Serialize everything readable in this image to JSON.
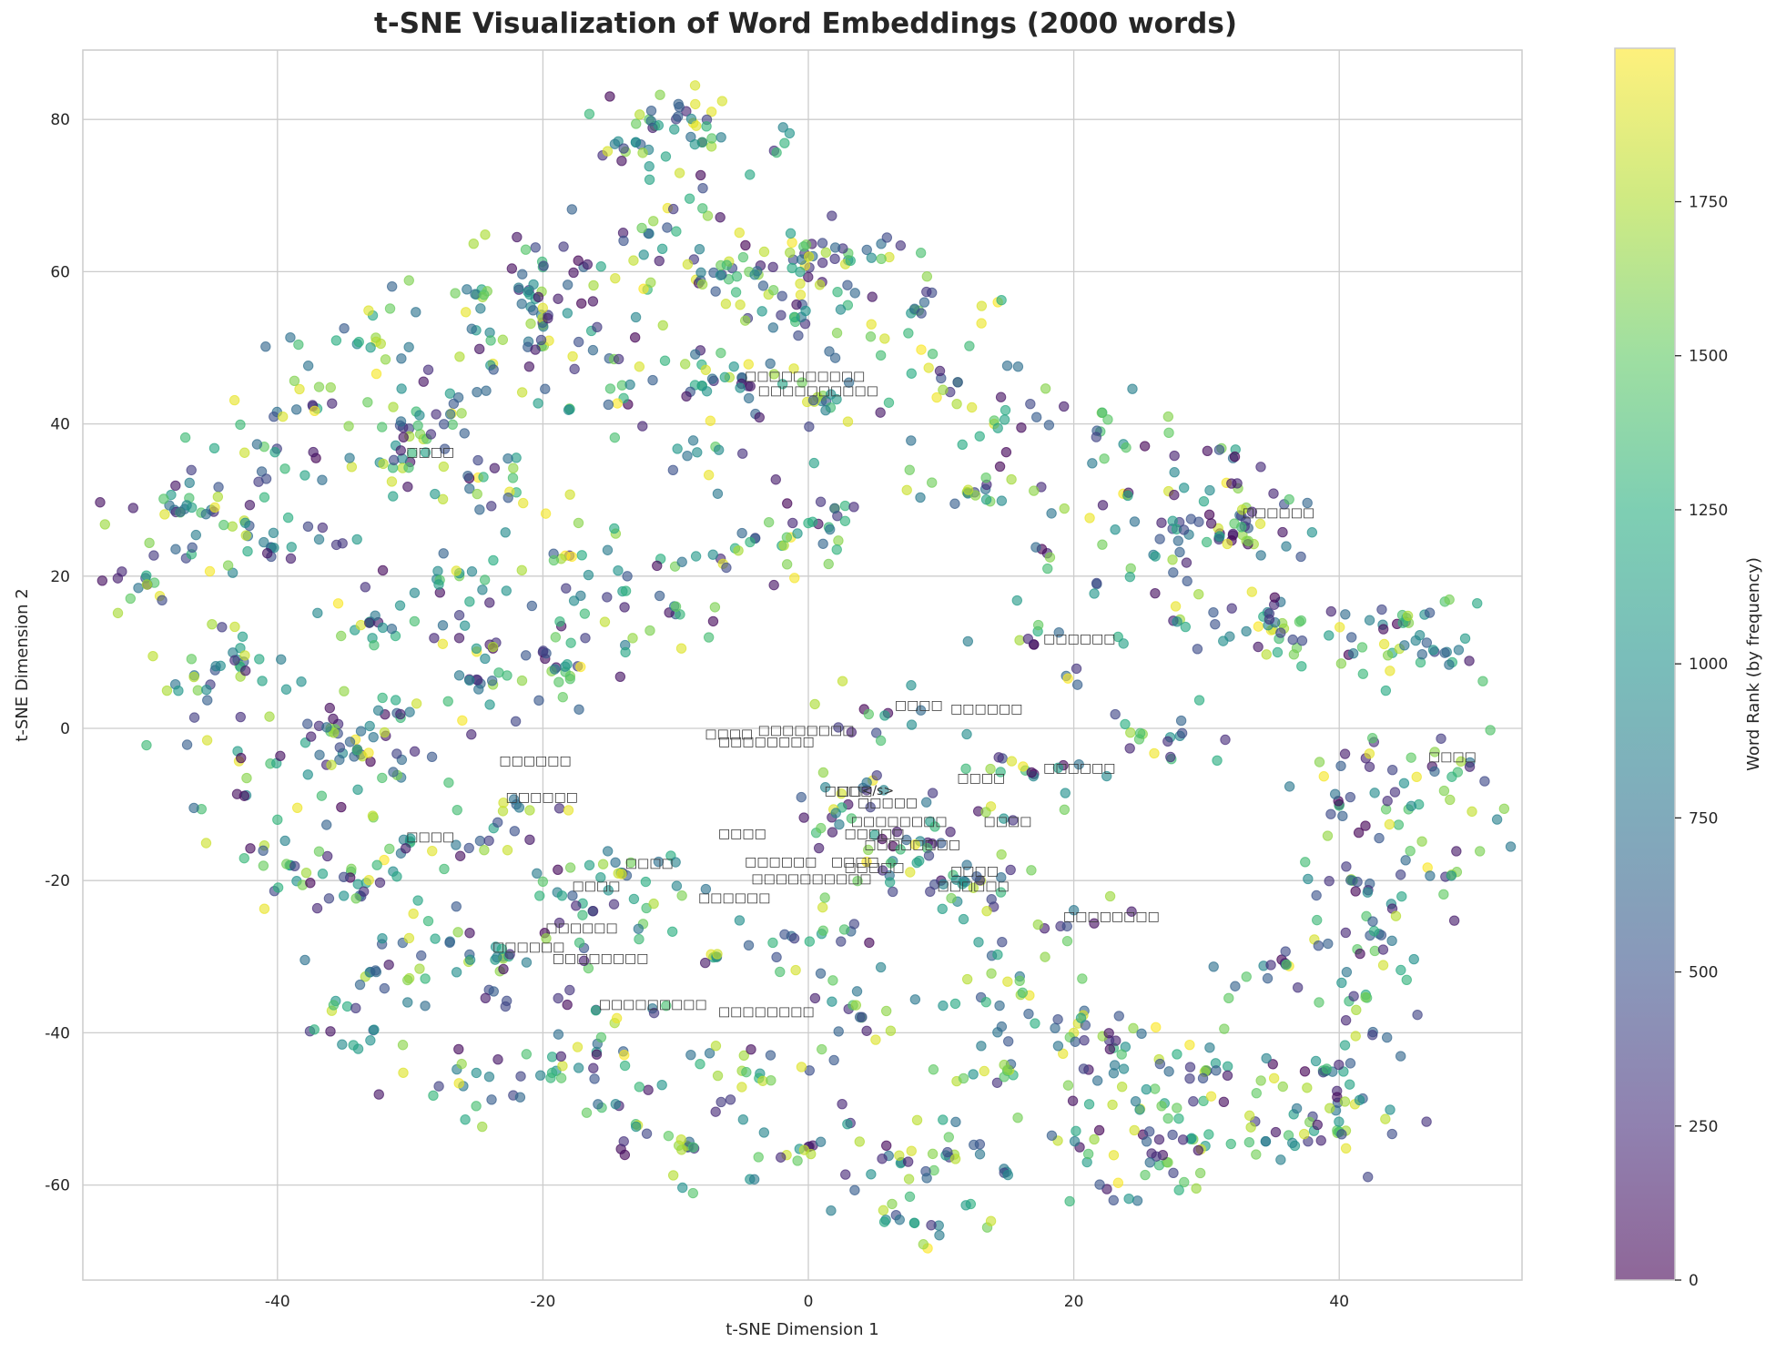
{
  "chart_data": {
    "type": "scatter",
    "title": "t-SNE Visualization of Word Embeddings (2000 words)",
    "xlabel": "t-SNE Dimension 1",
    "ylabel": "t-SNE Dimension 2",
    "xlim": [
      -55,
      53
    ],
    "ylim": [
      -72,
      89
    ],
    "xticks": [
      -40,
      -20,
      0,
      20,
      40
    ],
    "yticks": [
      -60,
      -40,
      -20,
      0,
      20,
      40,
      60,
      80
    ],
    "grid": true,
    "colorbar": {
      "label": "Word Rank (by frequency)",
      "colormap": "viridis",
      "alpha": 0.6,
      "range": [
        0,
        1999
      ],
      "ticks": [
        0,
        250,
        500,
        750,
        1000,
        1250,
        1500,
        1750
      ]
    },
    "n_points": 2000,
    "point_label_text": "□ (missing-glyph boxes)",
    "sample_points": [
      [
        -49.8,
        18.9,
        20
      ],
      [
        -47,
        28.8,
        700
      ],
      [
        -46,
        5,
        1600
      ],
      [
        -45,
        28.7,
        800
      ],
      [
        -43,
        9,
        1050
      ],
      [
        -43,
        -3,
        1100
      ],
      [
        -41,
        37,
        1500
      ],
      [
        -40.5,
        23.8,
        600
      ],
      [
        -40,
        -12,
        1300
      ],
      [
        -39,
        -18,
        900
      ],
      [
        -37,
        42,
        1200
      ],
      [
        -36,
        0,
        1700
      ],
      [
        -35,
        -22,
        1000
      ],
      [
        -34,
        50.5,
        900
      ],
      [
        -34,
        -3,
        1000
      ],
      [
        -33,
        14,
        700
      ],
      [
        -33,
        -32,
        400
      ],
      [
        -33,
        -41,
        1000
      ],
      [
        -31,
        2,
        600
      ],
      [
        -30,
        35,
        100
      ],
      [
        -30,
        -15,
        1200
      ],
      [
        -29,
        38,
        1800
      ],
      [
        -28,
        19.6,
        900
      ],
      [
        -27,
        44,
        1100
      ],
      [
        -27,
        -28,
        800
      ],
      [
        -26,
        -47,
        800
      ],
      [
        -25,
        57,
        1400
      ],
      [
        -25,
        6.4,
        300
      ],
      [
        -24,
        52,
        900
      ],
      [
        -24,
        11,
        150
      ],
      [
        -23,
        -30,
        700
      ],
      [
        -22,
        -10,
        600
      ],
      [
        -22,
        31,
        1300
      ],
      [
        -21,
        57,
        1100
      ],
      [
        -20,
        60.6,
        1300
      ],
      [
        -20,
        53,
        1800
      ],
      [
        -20,
        10,
        200
      ],
      [
        -19,
        8,
        100
      ],
      [
        -19,
        -45,
        1000
      ],
      [
        -18,
        42,
        1600
      ],
      [
        -18,
        22.7,
        250
      ],
      [
        -17,
        -23,
        1200
      ],
      [
        -16,
        -37,
        300
      ],
      [
        -15,
        48.6,
        600
      ],
      [
        -14,
        18,
        1100
      ],
      [
        -14,
        -19,
        200
      ],
      [
        -13,
        -52,
        1400
      ],
      [
        -13,
        77,
        1000
      ],
      [
        -12,
        80,
        1500
      ],
      [
        -12,
        65,
        900
      ],
      [
        -11,
        63,
        1100
      ],
      [
        -10,
        15,
        600
      ],
      [
        -9,
        -55,
        1300
      ],
      [
        -8,
        45,
        1400
      ],
      [
        -8,
        77,
        50
      ],
      [
        -7,
        37,
        1500
      ],
      [
        -7,
        -30,
        1200
      ],
      [
        -6,
        59,
        1400
      ],
      [
        -5,
        46,
        700
      ],
      [
        -5,
        -45,
        1700
      ],
      [
        -4,
        25,
        300
      ],
      [
        -3,
        57,
        1800
      ],
      [
        -2,
        24,
        1200
      ],
      [
        -1,
        54,
        1700
      ],
      [
        0,
        62,
        1700
      ],
      [
        0,
        -55,
        100
      ],
      [
        1,
        43,
        900
      ],
      [
        1,
        -27,
        1100
      ],
      [
        2,
        28.9,
        1600
      ],
      [
        3,
        61.5,
        900
      ],
      [
        3,
        -10,
        100
      ],
      [
        4,
        -38,
        1500
      ],
      [
        5,
        -14,
        1100
      ],
      [
        6,
        2,
        50
      ],
      [
        7,
        -57,
        600
      ],
      [
        8,
        55,
        1500
      ],
      [
        8,
        -65,
        1300
      ],
      [
        9,
        -15,
        150
      ],
      [
        10,
        -20,
        100
      ],
      [
        10,
        46,
        500
      ],
      [
        11,
        -56,
        1700
      ],
      [
        12,
        31,
        1000
      ],
      [
        13,
        -20,
        1800
      ],
      [
        14,
        40,
        1900
      ],
      [
        15,
        -45,
        1200
      ],
      [
        16,
        -35,
        1700
      ],
      [
        17,
        11,
        300
      ],
      [
        17,
        -6,
        100
      ],
      [
        18,
        23,
        200
      ],
      [
        19,
        -26,
        300
      ],
      [
        20,
        -40,
        1900
      ],
      [
        21,
        -57,
        1100
      ],
      [
        22,
        39,
        1400
      ],
      [
        23,
        -42,
        1300
      ],
      [
        24,
        30.7,
        1950
      ],
      [
        25,
        -50,
        1900
      ],
      [
        26,
        22.8,
        800
      ],
      [
        27,
        -57,
        1500
      ],
      [
        28,
        -1,
        900
      ],
      [
        28,
        14.3,
        1700
      ],
      [
        29,
        -54,
        1600
      ],
      [
        30,
        -45,
        1200
      ],
      [
        31,
        25.6,
        100
      ],
      [
        32,
        35.5,
        700
      ],
      [
        32.5,
        28,
        700
      ],
      [
        33,
        24.6,
        1700
      ],
      [
        35,
        13,
        1600
      ],
      [
        36,
        -31,
        1300
      ],
      [
        37,
        14,
        1500
      ],
      [
        38,
        -51,
        400
      ],
      [
        39,
        -45,
        500
      ],
      [
        40,
        -10,
        100
      ],
      [
        40,
        -53,
        1600
      ],
      [
        41,
        -20,
        1900
      ],
      [
        42,
        -35,
        1200
      ],
      [
        43,
        -27,
        900
      ],
      [
        44,
        9.9,
        1200
      ],
      [
        45,
        14,
        300
      ],
      [
        46,
        -10,
        1200
      ],
      [
        47,
        -5,
        100
      ],
      [
        48,
        -19.5,
        300
      ],
      [
        49,
        10.3,
        800
      ]
    ],
    "annotations": [
      {
        "x": -5,
        "y": 45.5,
        "text": "□□□□□□□□□□"
      },
      {
        "x": -4,
        "y": 43.6,
        "text": "□□□□□□□□□□"
      },
      {
        "x": -30.5,
        "y": 35.5,
        "text": "□□□□"
      },
      {
        "x": 32.5,
        "y": 27.6,
        "text": "□□□□□□"
      },
      {
        "x": 17.5,
        "y": 11,
        "text": "□□□□□□"
      },
      {
        "x": 6.3,
        "y": 2.3,
        "text": "□□□□"
      },
      {
        "x": 10.5,
        "y": 1.8,
        "text": "□□□□□□"
      },
      {
        "x": -8,
        "y": -1.5,
        "text": "□□□□"
      },
      {
        "x": -7,
        "y": -2.5,
        "text": "□□□□□□□□"
      },
      {
        "x": -4,
        "y": -1,
        "text": "□□□□□□□□"
      },
      {
        "x": -23.5,
        "y": -5,
        "text": "□□□□□□"
      },
      {
        "x": 17.5,
        "y": -6,
        "text": "□□□□□□"
      },
      {
        "x": 46.5,
        "y": -4.5,
        "text": "□□□□"
      },
      {
        "x": 11,
        "y": -7.3,
        "text": "□□□□"
      },
      {
        "x": -23,
        "y": -9.8,
        "text": "□□□□□□"
      },
      {
        "x": 1,
        "y": -9,
        "text": "□□□□"
      },
      {
        "x": 2,
        "y": -9,
        "text": "□□</s>"
      },
      {
        "x": 3.5,
        "y": -10.5,
        "text": "□□□□□"
      },
      {
        "x": 3,
        "y": -13,
        "text": "□□□□□□□□"
      },
      {
        "x": 13,
        "y": -13,
        "text": "□□□□"
      },
      {
        "x": -30.5,
        "y": -15,
        "text": "□□□□"
      },
      {
        "x": -7,
        "y": -14.6,
        "text": "□□□□"
      },
      {
        "x": 2.5,
        "y": -14.6,
        "text": "□□□□□"
      },
      {
        "x": 4,
        "y": -16,
        "text": "□□□□□□□□"
      },
      {
        "x": -14,
        "y": -18.5,
        "text": "□□□□"
      },
      {
        "x": -5,
        "y": -18.3,
        "text": "□□□□□□"
      },
      {
        "x": 1.5,
        "y": -18.3,
        "text": "□□□□"
      },
      {
        "x": 2.5,
        "y": -19,
        "text": "□□□□□"
      },
      {
        "x": 10.5,
        "y": -19.5,
        "text": "□□□□"
      },
      {
        "x": 9.5,
        "y": -21.5,
        "text": "□□□□□□"
      },
      {
        "x": -4.5,
        "y": -20.5,
        "text": "□□□□□□□□□□"
      },
      {
        "x": -18,
        "y": -21.5,
        "text": "□□□□"
      },
      {
        "x": -8.5,
        "y": -23,
        "text": "□□□□□□"
      },
      {
        "x": 19,
        "y": -25.5,
        "text": "□□□□□□□□"
      },
      {
        "x": -20,
        "y": -27,
        "text": "□□□□□□"
      },
      {
        "x": -24,
        "y": -29.5,
        "text": "□□□□□□"
      },
      {
        "x": -19.5,
        "y": -31,
        "text": "□□□□□□□□"
      },
      {
        "x": -16,
        "y": -37,
        "text": "□□□□□□□□□"
      },
      {
        "x": -7,
        "y": -38,
        "text": "□□□□□□□□"
      }
    ]
  }
}
